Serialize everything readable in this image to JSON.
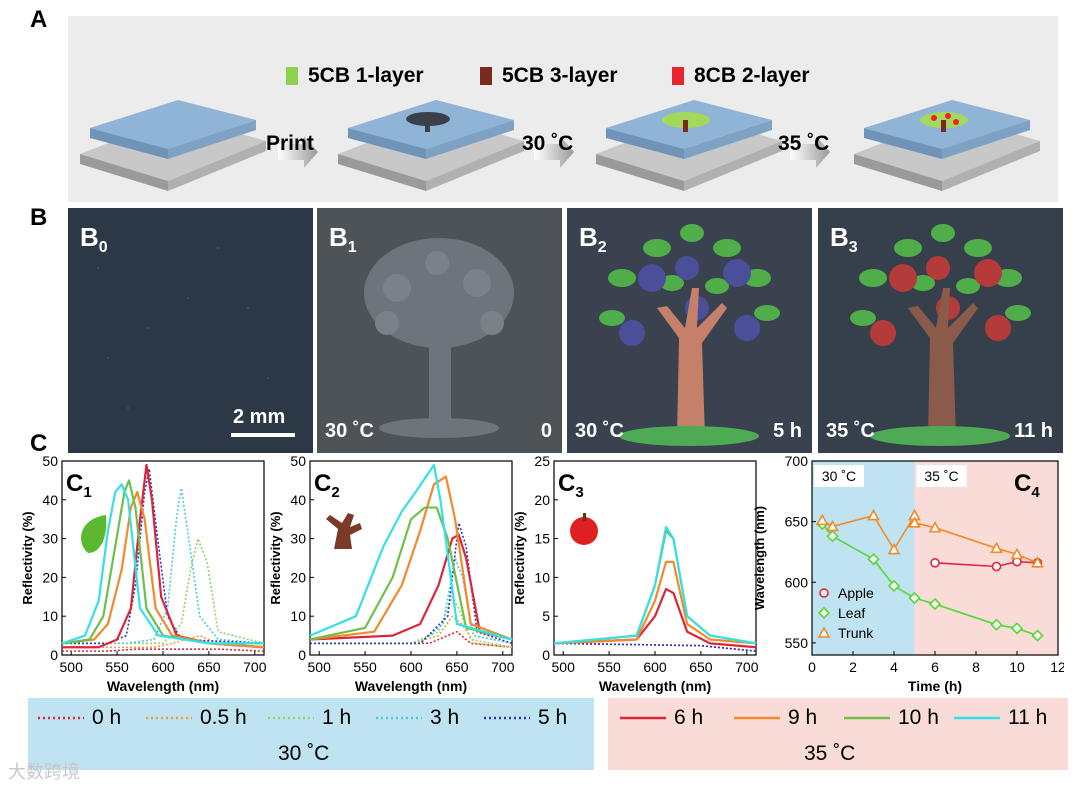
{
  "panels": {
    "A": "A",
    "B": "B",
    "C": "C"
  },
  "schematic": {
    "legend": [
      {
        "label": "5CB 1-layer",
        "color": "#8ed24f"
      },
      {
        "label": "5CB 3-layer",
        "color": "#7a2a1c"
      },
      {
        "label": "8CB 2-layer",
        "color": "#e8242e"
      }
    ],
    "steps": [
      "Print",
      "30 ˚C",
      "35 ˚C"
    ]
  },
  "photos": [
    {
      "sub": "0",
      "temp": "",
      "time": "",
      "scale": "2 mm"
    },
    {
      "sub": "1",
      "temp": "30 ˚C",
      "time": "0"
    },
    {
      "sub": "2",
      "temp": "30 ˚C",
      "time": "5 h"
    },
    {
      "sub": "3",
      "temp": "35 ˚C",
      "time": "11 h"
    }
  ],
  "photo_prefix": "B",
  "spectra_prefix": "C",
  "colors": {
    "0h": "#d9263a",
    "0.5h": "#f0a040",
    "1h": "#8fd66a",
    "3h": "#4ec6e8",
    "5h": "#2638c8",
    "6h": "#d9263a",
    "9h": "#f08a2a",
    "10h": "#6cc04a",
    "11h": "#35e0e8"
  },
  "chart_data": [
    {
      "type": "line",
      "name": "C1",
      "xlabel": "Wavelength (nm)",
      "ylabel": "Reflectivity (%)",
      "xlim": [
        490,
        710
      ],
      "ylim": [
        0,
        50
      ],
      "xticks": [
        500,
        550,
        600,
        650,
        700
      ],
      "yticks": [
        0,
        10,
        20,
        30,
        40,
        50
      ],
      "series": [
        {
          "name": "0 h",
          "dotted": true,
          "x": [
            490,
            540,
            570,
            600,
            630,
            660,
            710
          ],
          "y": [
            1,
            1,
            1.5,
            1.5,
            1.5,
            1.5,
            1
          ]
        },
        {
          "name": "0.5 h",
          "dotted": true,
          "x": [
            490,
            560,
            590,
            610,
            625,
            640,
            660,
            710
          ],
          "y": [
            2,
            2,
            2,
            3,
            4,
            5,
            3,
            2
          ]
        },
        {
          "name": "1 h",
          "dotted": true,
          "x": [
            490,
            560,
            600,
            620,
            630,
            638,
            648,
            660,
            710
          ],
          "y": [
            3,
            3,
            3,
            8,
            22,
            30,
            24,
            6,
            3
          ]
        },
        {
          "name": "3 h",
          "dotted": true,
          "x": [
            490,
            560,
            590,
            605,
            615,
            620,
            628,
            640,
            660,
            710
          ],
          "y": [
            3,
            3,
            4,
            12,
            36,
            43,
            30,
            10,
            4,
            3
          ]
        },
        {
          "name": "5 h",
          "dotted": true,
          "x": [
            490,
            540,
            560,
            570,
            580,
            585,
            592,
            605,
            620,
            710
          ],
          "y": [
            3,
            3,
            5,
            18,
            42,
            48,
            34,
            10,
            4,
            3
          ]
        },
        {
          "name": "6 h",
          "dotted": false,
          "x": [
            490,
            530,
            550,
            565,
            575,
            582,
            588,
            598,
            615,
            650,
            710
          ],
          "y": [
            2,
            2,
            4,
            12,
            35,
            49,
            40,
            15,
            5,
            3,
            2
          ]
        },
        {
          "name": "9 h",
          "dotted": false,
          "x": [
            490,
            525,
            540,
            555,
            565,
            572,
            580,
            592,
            610,
            650,
            710
          ],
          "y": [
            3,
            4,
            8,
            22,
            38,
            42,
            35,
            12,
            5,
            3,
            2
          ]
        },
        {
          "name": "10 h",
          "dotted": false,
          "x": [
            490,
            520,
            535,
            548,
            558,
            563,
            570,
            582,
            600,
            650,
            710
          ],
          "y": [
            3,
            4,
            10,
            28,
            42,
            45,
            38,
            12,
            5,
            3,
            3
          ]
        },
        {
          "name": "11 h",
          "dotted": false,
          "x": [
            490,
            515,
            530,
            540,
            548,
            555,
            562,
            575,
            595,
            650,
            710
          ],
          "y": [
            3,
            5,
            14,
            32,
            42,
            44,
            40,
            12,
            5,
            3,
            3
          ]
        }
      ]
    },
    {
      "type": "line",
      "name": "C2",
      "xlabel": "Wavelength (nm)",
      "ylabel": "Reflectivity (%)",
      "xlim": [
        490,
        710
      ],
      "ylim": [
        0,
        50
      ],
      "xticks": [
        500,
        550,
        600,
        650,
        700
      ],
      "yticks": [
        0,
        10,
        20,
        30,
        40,
        50
      ],
      "series": [
        {
          "name": "0 h",
          "dotted": true,
          "x": [
            490,
            580,
            620,
            640,
            650,
            665,
            710
          ],
          "y": [
            3,
            3,
            3,
            5,
            6,
            3,
            2
          ]
        },
        {
          "name": "0.5 h",
          "dotted": true,
          "x": [
            490,
            600,
            630,
            645,
            655,
            670,
            710
          ],
          "y": [
            3,
            3,
            5,
            10,
            8,
            3,
            2
          ]
        },
        {
          "name": "1 h",
          "dotted": true,
          "x": [
            490,
            600,
            630,
            645,
            652,
            665,
            710
          ],
          "y": [
            3,
            3,
            6,
            15,
            12,
            4,
            2
          ]
        },
        {
          "name": "3 h",
          "dotted": true,
          "x": [
            490,
            610,
            635,
            648,
            656,
            668,
            710
          ],
          "y": [
            3,
            3,
            8,
            25,
            20,
            5,
            3
          ]
        },
        {
          "name": "5 h",
          "dotted": true,
          "x": [
            490,
            610,
            640,
            652,
            660,
            672,
            710
          ],
          "y": [
            3,
            3,
            10,
            34,
            28,
            6,
            3
          ]
        },
        {
          "name": "6 h",
          "dotted": false,
          "x": [
            490,
            580,
            610,
            630,
            645,
            652,
            660,
            675,
            710
          ],
          "y": [
            4,
            5,
            8,
            18,
            30,
            31,
            25,
            6,
            4
          ]
        },
        {
          "name": "9 h",
          "dotted": false,
          "x": [
            490,
            560,
            590,
            610,
            625,
            638,
            648,
            665,
            710
          ],
          "y": [
            4,
            6,
            18,
            32,
            44,
            46,
            35,
            8,
            4
          ]
        },
        {
          "name": "10 h",
          "dotted": false,
          "x": [
            490,
            550,
            580,
            600,
            615,
            628,
            640,
            660,
            710
          ],
          "y": [
            4,
            7,
            20,
            35,
            38,
            38,
            30,
            7,
            4
          ]
        },
        {
          "name": "11 h",
          "dotted": false,
          "x": [
            490,
            540,
            570,
            590,
            608,
            625,
            632,
            650,
            710
          ],
          "y": [
            5,
            10,
            28,
            37,
            43,
            49,
            40,
            8,
            4
          ]
        }
      ]
    },
    {
      "type": "line",
      "name": "C3",
      "xlabel": "Wavelength (nm)",
      "ylabel": "Reflectivity (%)",
      "xlim": [
        490,
        710
      ],
      "ylim": [
        0,
        25
      ],
      "xticks": [
        500,
        550,
        600,
        650,
        700
      ],
      "yticks": [
        0,
        5,
        10,
        15,
        20,
        25
      ],
      "series": [
        {
          "name": "0 h",
          "dotted": true,
          "x": [
            490,
            600,
            650,
            710
          ],
          "y": [
            1.5,
            1.3,
            1.2,
            0.5
          ]
        },
        {
          "name": "5 h",
          "dotted": true,
          "x": [
            490,
            600,
            650,
            710
          ],
          "y": [
            1.5,
            1.3,
            1.2,
            0.5
          ]
        },
        {
          "name": "6 h",
          "dotted": false,
          "x": [
            490,
            580,
            600,
            612,
            620,
            635,
            660,
            710
          ],
          "y": [
            1.5,
            2,
            5,
            8.5,
            8,
            3,
            1.5,
            1
          ]
        },
        {
          "name": "9 h",
          "dotted": false,
          "x": [
            490,
            580,
            600,
            612,
            620,
            635,
            660,
            710
          ],
          "y": [
            1.5,
            2,
            7,
            12,
            12,
            4,
            2,
            1.5
          ]
        },
        {
          "name": "10 h",
          "dotted": false,
          "x": [
            490,
            580,
            600,
            612,
            620,
            635,
            660,
            710
          ],
          "y": [
            1.5,
            2.5,
            9,
            16,
            15,
            5,
            2.5,
            1.5
          ]
        },
        {
          "name": "11 h",
          "dotted": false,
          "x": [
            490,
            580,
            600,
            612,
            620,
            635,
            660,
            710
          ],
          "y": [
            1.5,
            2.5,
            9,
            16.5,
            15,
            5,
            2.5,
            1.5
          ]
        }
      ]
    },
    {
      "type": "scatter",
      "name": "C4",
      "xlabel": "Time (h)",
      "ylabel": "Wavelength (nm)",
      "xlim": [
        0,
        12
      ],
      "ylim": [
        540,
        700
      ],
      "xticks": [
        0,
        2,
        4,
        6,
        8,
        10,
        12
      ],
      "yticks": [
        550,
        600,
        650,
        700
      ],
      "regions": [
        {
          "label": "30 ˚C",
          "from": 0,
          "to": 5,
          "color": "#bfe3f0"
        },
        {
          "label": "35 ˚C",
          "from": 5,
          "to": 12,
          "color": "#f9dcd8"
        }
      ],
      "series": [
        {
          "name": "Apple",
          "marker": "circle",
          "color": "#e02440",
          "x": [
            6,
            9,
            10,
            11
          ],
          "y": [
            616,
            613,
            617,
            616
          ]
        },
        {
          "name": "Leaf",
          "marker": "diamond",
          "color": "#55d832",
          "x": [
            0.5,
            1,
            3,
            4,
            5,
            6,
            9,
            10,
            11
          ],
          "y": [
            648,
            638,
            619,
            597,
            587,
            582,
            565,
            562,
            556
          ]
        },
        {
          "name": "Trunk",
          "marker": "triangle",
          "color": "#f08a2a",
          "x": [
            0.5,
            1,
            3,
            4,
            5,
            5,
            6,
            9,
            10,
            11
          ],
          "y": [
            651,
            646,
            655,
            627,
            655,
            649,
            645,
            628,
            623,
            616
          ]
        }
      ]
    }
  ],
  "bottom_legend": {
    "left_temp": "30 ˚C",
    "right_temp": "35 ˚C",
    "left_items": [
      "0 h",
      "0.5 h",
      "1 h",
      "3 h",
      "5 h"
    ],
    "right_items": [
      "6 h",
      "9 h",
      "10 h",
      "11 h"
    ]
  },
  "watermark": "大数跨境"
}
